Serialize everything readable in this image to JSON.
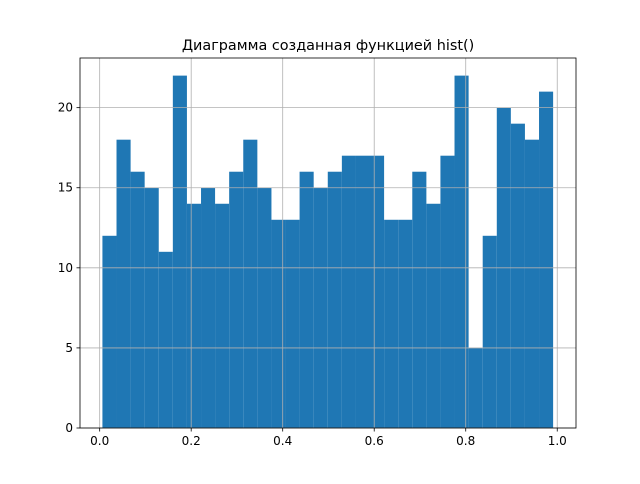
{
  "chart_data": {
    "type": "histogram",
    "title": "Диаграмма созданная функцией hist()",
    "bins": [
      0.006,
      0.0368,
      0.0676,
      0.0983,
      0.1291,
      0.1599,
      0.1907,
      0.2215,
      0.2522,
      0.283,
      0.3138,
      0.3446,
      0.3754,
      0.4062,
      0.4369,
      0.4677,
      0.4985,
      0.5293,
      0.5601,
      0.5908,
      0.6216,
      0.6524,
      0.6832,
      0.714,
      0.7447,
      0.7755,
      0.8063,
      0.8371,
      0.8679,
      0.8986,
      0.9294,
      0.9602,
      0.991
    ],
    "counts": [
      12,
      18,
      16,
      15,
      11,
      22,
      14,
      15,
      14,
      16,
      18,
      15,
      13,
      13,
      16,
      15,
      16,
      17,
      17,
      17,
      13,
      13,
      16,
      14,
      17,
      22,
      5,
      12,
      20,
      19,
      18,
      21
    ],
    "color": "#1f77b4",
    "xlim": [
      -0.043,
      1.041
    ],
    "xticks": [
      {
        "value": 0,
        "label": "0.0"
      },
      0.2,
      0.4,
      0.6,
      0.8,
      {
        "value": 1,
        "label": "1.0"
      }
    ],
    "ylim": [
      0,
      23.1
    ],
    "yticks": [
      0,
      5,
      10,
      15,
      20
    ],
    "grid": true
  }
}
